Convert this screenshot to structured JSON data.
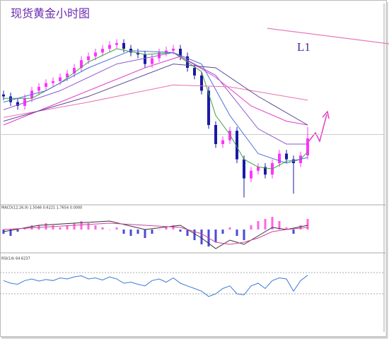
{
  "chart_data": [
    {
      "type": "candlestick",
      "title": "现货黄金小时图",
      "annotation": "L1",
      "xlim": [
        -0.5,
        54.5
      ],
      "ylim": [
        0,
        100
      ],
      "open": [
        56,
        55,
        52,
        50,
        54,
        58,
        60,
        62,
        63,
        65,
        67,
        70,
        74,
        76,
        78,
        80,
        82,
        83,
        80,
        78,
        77,
        72,
        75,
        78,
        79,
        80,
        76,
        70,
        66,
        58,
        40,
        30,
        32,
        37,
        22,
        12,
        16,
        18,
        14,
        20,
        25,
        22,
        20,
        24
      ],
      "high": [
        58,
        57,
        54,
        56,
        60,
        62,
        64,
        65,
        67,
        69,
        72,
        76,
        78,
        80,
        82,
        84,
        85,
        85,
        82,
        80,
        79,
        77,
        80,
        81,
        82,
        82,
        78,
        72,
        68,
        60,
        42,
        34,
        39,
        39,
        24,
        18,
        20,
        20,
        22,
        27,
        27,
        24,
        26,
        39
      ],
      "low": [
        53,
        50,
        48,
        48,
        52,
        56,
        58,
        60,
        61,
        63,
        65,
        68,
        72,
        74,
        76,
        78,
        80,
        78,
        76,
        75,
        70,
        70,
        73,
        76,
        77,
        74,
        68,
        64,
        56,
        38,
        28,
        28,
        30,
        20,
        2,
        10,
        14,
        12,
        12,
        18,
        20,
        4,
        18,
        22
      ],
      "close": [
        55,
        52,
        50,
        54,
        58,
        60,
        62,
        63,
        65,
        67,
        70,
        74,
        76,
        78,
        80,
        82,
        83,
        80,
        78,
        77,
        72,
        75,
        78,
        79,
        80,
        76,
        70,
        66,
        58,
        40,
        30,
        32,
        37,
        22,
        12,
        16,
        18,
        14,
        20,
        25,
        22,
        20,
        24,
        33
      ],
      "up_color": "#ff33ff",
      "down_color": "#1a1aa6",
      "series": [
        {
          "color": "#3aa33a",
          "x": [
            0,
            4,
            8,
            12,
            16,
            20,
            24,
            28,
            30,
            32,
            34,
            36,
            38,
            40,
            42,
            43
          ],
          "values": [
            54,
            54,
            62,
            73,
            80,
            77,
            78,
            68,
            45,
            35,
            22,
            18,
            17,
            21,
            22,
            26
          ]
        },
        {
          "color": "#4a6fd8",
          "x": [
            0,
            6,
            12,
            18,
            24,
            28,
            32,
            36,
            40,
            43
          ],
          "values": [
            52,
            58,
            70,
            79,
            78,
            72,
            45,
            25,
            20,
            23
          ]
        },
        {
          "color": "#8a5ad0",
          "x": [
            0,
            8,
            16,
            24,
            30,
            36,
            40,
            43
          ],
          "values": [
            48,
            58,
            72,
            78,
            66,
            38,
            30,
            30
          ]
        },
        {
          "color": "#e040c8",
          "x": [
            0,
            10,
            20,
            25,
            30,
            35,
            40,
            43
          ],
          "values": [
            40,
            55,
            70,
            76,
            65,
            50,
            42,
            40
          ]
        },
        {
          "color": "#e870b0",
          "x": [
            0,
            12,
            24,
            32,
            43
          ],
          "values": [
            44,
            52,
            61,
            60,
            53
          ]
        },
        {
          "color": "#5a4a9a",
          "x": [
            0,
            12,
            24,
            30,
            36,
            43
          ],
          "values": [
            42,
            55,
            72,
            70,
            55,
            40
          ]
        }
      ],
      "trend_line": {
        "color": "#e878c0",
        "x": [
          37.3,
          54.5
        ],
        "values": [
          90.7,
          82.6
        ]
      },
      "hline": 35
    },
    {
      "type": "macd",
      "label": "MACD(12,26,9) 1.5046 0.6221 1.7654 0.0000",
      "xlim": [
        -0.5,
        54.5
      ],
      "ylim": [
        -10,
        10
      ],
      "histogram": [
        -2,
        -3,
        -1,
        1,
        2,
        2,
        3,
        2,
        1,
        2,
        3,
        4,
        3,
        2,
        1,
        0,
        1,
        -2,
        -3,
        -2,
        -4,
        -2,
        0,
        1,
        2,
        -1,
        -3,
        -5,
        -7,
        -8,
        -6,
        -2,
        1,
        -3,
        -5,
        2,
        4,
        5,
        6,
        4,
        1,
        -2,
        2,
        5
      ],
      "up_color": "#ff66e0",
      "down_color": "#4a4ad8",
      "series": [
        {
          "color": "#333333",
          "x": [
            0,
            5,
            10,
            15,
            20,
            25,
            28,
            30,
            32,
            34,
            36,
            38,
            40,
            43
          ],
          "values": [
            -1,
            2,
            3,
            4,
            0,
            2,
            -4,
            -9,
            -5,
            -7,
            -3,
            1,
            0,
            2
          ]
        },
        {
          "color": "#d040a0",
          "x": [
            0,
            5,
            10,
            15,
            20,
            25,
            28,
            30,
            32,
            34,
            36,
            38,
            40,
            43
          ],
          "values": [
            0,
            1,
            2,
            3,
            2,
            1,
            -2,
            -6,
            -7,
            -6,
            -4,
            -1,
            0,
            1
          ]
        }
      ]
    },
    {
      "type": "line",
      "label": "RSI(14) 64.6237",
      "xlim": [
        -0.5,
        54.5
      ],
      "ylim": [
        0,
        100
      ],
      "levels": [
        70,
        30
      ],
      "series": [
        {
          "color": "#3a7ad8",
          "values": [
            55,
            50,
            48,
            55,
            58,
            54,
            57,
            55,
            60,
            58,
            62,
            64,
            58,
            60,
            56,
            62,
            58,
            50,
            52,
            48,
            45,
            55,
            58,
            52,
            60,
            50,
            45,
            40,
            35,
            25,
            30,
            40,
            45,
            30,
            28,
            45,
            50,
            40,
            55,
            60,
            58,
            35,
            55,
            65
          ]
        }
      ]
    }
  ]
}
